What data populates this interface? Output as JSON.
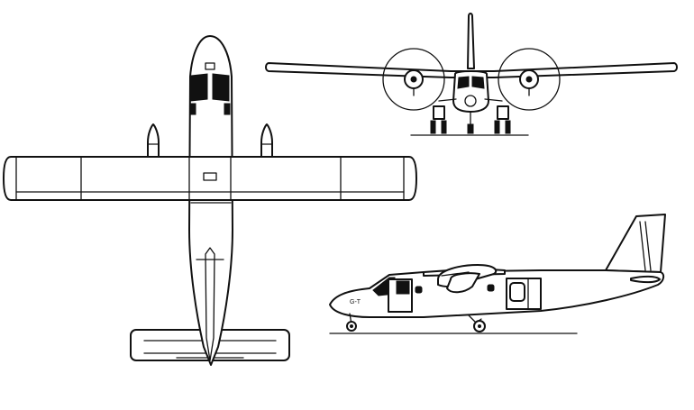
{
  "drawing": {
    "views": [
      "top-view",
      "front-view",
      "side-view"
    ],
    "markings": {
      "nose_registration": "G-T"
    },
    "colors": {
      "line": "#111111",
      "background": "#ffffff"
    }
  }
}
